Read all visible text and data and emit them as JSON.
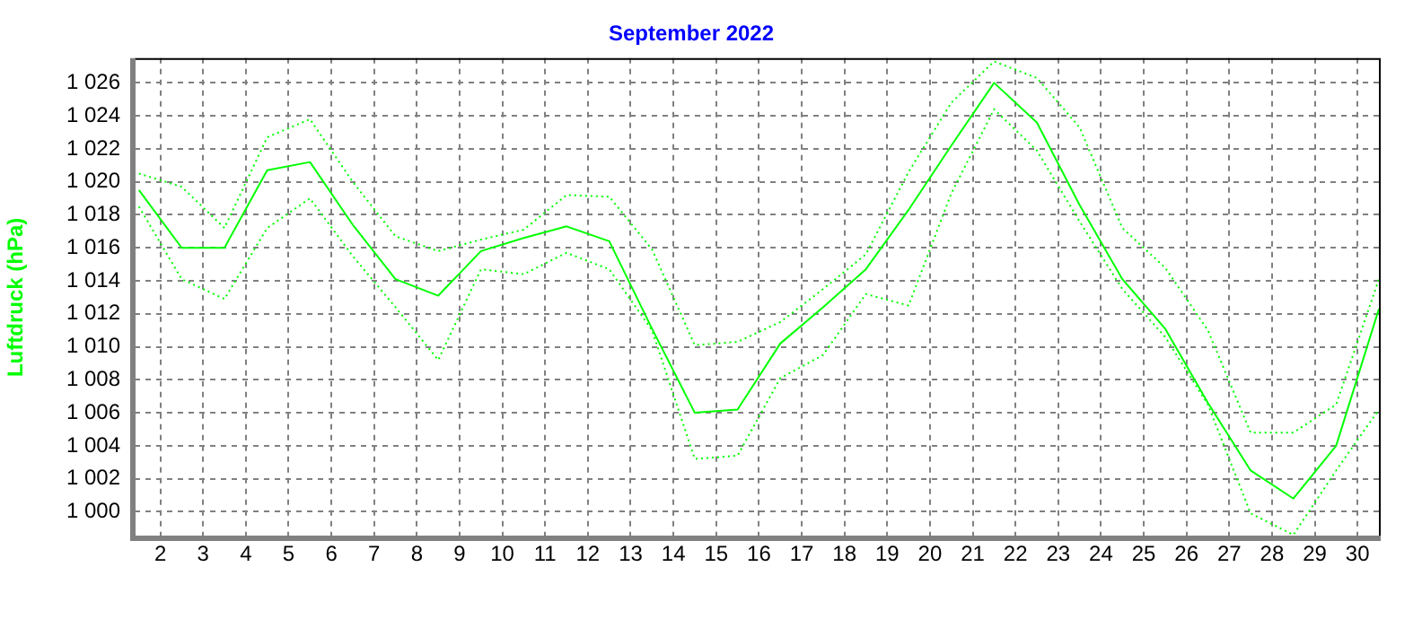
{
  "chart_data": {
    "type": "line",
    "title": "September 2022",
    "ylabel": "Luftdruck (hPa)",
    "x": [
      1.5,
      2.5,
      3.5,
      4.5,
      5.5,
      6.5,
      7.5,
      8.5,
      9.5,
      10.5,
      11.5,
      12.5,
      13.5,
      14.5,
      15.5,
      16.5,
      17.5,
      18.5,
      19.5,
      20.5,
      21.5,
      22.5,
      23.5,
      24.5,
      25.5,
      26.5,
      27.5,
      28.5,
      29.5,
      30.5
    ],
    "series": [
      {
        "color": "#00ff00",
        "line_style": "dotted",
        "values": [
          1020.5,
          1019.7,
          1017.2,
          1022.7,
          1023.8,
          1020.0,
          1016.7,
          1015.8,
          1016.5,
          1017.1,
          1019.2,
          1019.1,
          1015.9,
          1010.1,
          1010.3,
          1011.5,
          1013.5,
          1015.6,
          1020.6,
          1024.8,
          1027.3,
          1026.3,
          1023.3,
          1017.2,
          1014.8,
          1011.0,
          1004.8,
          1004.8,
          1006.5,
          1014.1
        ]
      },
      {
        "color": "#00ff00",
        "line_style": "solid",
        "values": [
          1019.5,
          1016.0,
          1016.0,
          1020.7,
          1021.2,
          1017.4,
          1014.1,
          1013.1,
          1015.8,
          1016.6,
          1017.3,
          1016.4,
          1011.1,
          1006.0,
          1006.2,
          1010.2,
          1012.4,
          1014.7,
          1018.3,
          1022.2,
          1026.0,
          1023.6,
          1018.6,
          1014.1,
          1011.1,
          1006.6,
          1002.5,
          1000.8,
          1004.0,
          1012.3
        ]
      },
      {
        "color": "#00ff00",
        "line_style": "dotted",
        "values": [
          1018.5,
          1014.1,
          1012.9,
          1017.2,
          1019.0,
          1015.5,
          1012.4,
          1009.2,
          1014.7,
          1014.4,
          1015.7,
          1014.7,
          1011.0,
          1003.2,
          1003.4,
          1008.1,
          1009.5,
          1013.2,
          1012.5,
          1019.3,
          1024.4,
          1021.9,
          1017.6,
          1013.5,
          1010.6,
          1006.5,
          999.9,
          998.6,
          1002.5,
          1006.2
        ]
      }
    ],
    "xlim": [
      1.4,
      30.5
    ],
    "xticks": [
      2,
      3,
      4,
      5,
      6,
      7,
      8,
      9,
      10,
      11,
      12,
      13,
      14,
      15,
      16,
      17,
      18,
      19,
      20,
      21,
      22,
      23,
      24,
      25,
      26,
      27,
      28,
      29,
      30
    ],
    "ylim": [
      998.5,
      1027.5
    ],
    "yticks": [
      {
        "value": 1000,
        "label": "1 000"
      },
      {
        "value": 1002,
        "label": "1 002"
      },
      {
        "value": 1004,
        "label": "1 004"
      },
      {
        "value": 1006,
        "label": "1 006"
      },
      {
        "value": 1008,
        "label": "1 008"
      },
      {
        "value": 1010,
        "label": "1 010"
      },
      {
        "value": 1012,
        "label": "1 012"
      },
      {
        "value": 1014,
        "label": "1 014"
      },
      {
        "value": 1016,
        "label": "1 016"
      },
      {
        "value": 1018,
        "label": "1 018"
      },
      {
        "value": 1020,
        "label": "1 020"
      },
      {
        "value": 1022,
        "label": "1 022"
      },
      {
        "value": 1024,
        "label": "1 024"
      },
      {
        "value": 1026,
        "label": "1 026"
      }
    ],
    "grid": true,
    "legend": false,
    "marker": "none"
  }
}
